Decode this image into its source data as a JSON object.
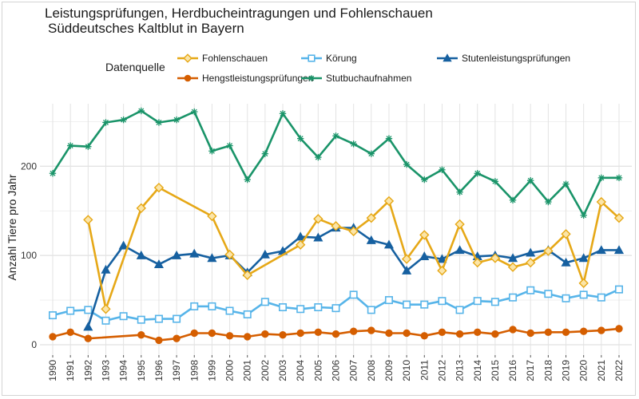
{
  "chart_data": {
    "type": "line",
    "title": "Leistungsprüfungen, Herdbucheintragungen und Fohlenschauen",
    "subtitle": "Süddeutsches Kaltblut in Bayern",
    "xlabel": "",
    "ylabel": "Anzahl Tiere pro Jahr",
    "legend_title": "Datenquelle",
    "legend_position": "top",
    "grid": true,
    "xlim": [
      1990,
      2022
    ],
    "ylim": [
      0,
      270
    ],
    "y_ticks": [
      0,
      100,
      200
    ],
    "x_ticks": [
      1990,
      1991,
      1992,
      1993,
      1994,
      1995,
      1996,
      1997,
      1998,
      1999,
      2000,
      2001,
      2002,
      2003,
      2004,
      2005,
      2006,
      2007,
      2008,
      2009,
      2010,
      2011,
      2012,
      2013,
      2014,
      2015,
      2016,
      2017,
      2018,
      2019,
      2020,
      2021,
      2022
    ],
    "series": [
      {
        "name": "Fohlenschauen",
        "color": "#E6A817",
        "marker": "diamond",
        "points": [
          [
            1992,
            140
          ],
          [
            1993,
            40
          ],
          [
            1995,
            153
          ],
          [
            1996,
            176
          ],
          [
            1999,
            144
          ],
          [
            2000,
            101
          ],
          [
            2001,
            78
          ],
          [
            2004,
            112
          ],
          [
            2005,
            141
          ],
          [
            2006,
            133
          ],
          [
            2007,
            127
          ],
          [
            2008,
            142
          ],
          [
            2009,
            161
          ],
          [
            2010,
            96
          ],
          [
            2011,
            123
          ],
          [
            2012,
            83
          ],
          [
            2013,
            135
          ],
          [
            2014,
            92
          ],
          [
            2015,
            97
          ],
          [
            2016,
            87
          ],
          [
            2017,
            92
          ],
          [
            2018,
            105
          ],
          [
            2019,
            124
          ],
          [
            2020,
            69
          ],
          [
            2021,
            160
          ],
          [
            2022,
            142
          ]
        ]
      },
      {
        "name": "Hengstleistungsprüfungen",
        "color": "#D55E00",
        "marker": "circle",
        "points": [
          [
            1990,
            9
          ],
          [
            1991,
            14
          ],
          [
            1992,
            7
          ],
          [
            1995,
            11
          ],
          [
            1996,
            5
          ],
          [
            1997,
            7
          ],
          [
            1998,
            13
          ],
          [
            1999,
            13
          ],
          [
            2000,
            10
          ],
          [
            2001,
            9
          ],
          [
            2002,
            12
          ],
          [
            2003,
            11
          ],
          [
            2004,
            13
          ],
          [
            2005,
            14
          ],
          [
            2006,
            12
          ],
          [
            2007,
            15
          ],
          [
            2008,
            16
          ],
          [
            2009,
            13
          ],
          [
            2010,
            13
          ],
          [
            2011,
            10
          ],
          [
            2012,
            14
          ],
          [
            2013,
            12
          ],
          [
            2014,
            14
          ],
          [
            2015,
            12
          ],
          [
            2016,
            17
          ],
          [
            2017,
            13
          ],
          [
            2018,
            14
          ],
          [
            2019,
            14
          ],
          [
            2020,
            15
          ],
          [
            2021,
            16
          ],
          [
            2022,
            18
          ]
        ]
      },
      {
        "name": "Körung",
        "color": "#56B4E9",
        "marker": "square",
        "points": [
          [
            1990,
            33
          ],
          [
            1991,
            38
          ],
          [
            1992,
            39
          ],
          [
            1993,
            27
          ],
          [
            1994,
            32
          ],
          [
            1995,
            28
          ],
          [
            1996,
            29
          ],
          [
            1997,
            29
          ],
          [
            1998,
            43
          ],
          [
            1999,
            43
          ],
          [
            2000,
            38
          ],
          [
            2001,
            34
          ],
          [
            2002,
            48
          ],
          [
            2003,
            42
          ],
          [
            2004,
            40
          ],
          [
            2005,
            42
          ],
          [
            2006,
            41
          ],
          [
            2007,
            56
          ],
          [
            2008,
            39
          ],
          [
            2009,
            50
          ],
          [
            2010,
            45
          ],
          [
            2011,
            45
          ],
          [
            2012,
            49
          ],
          [
            2013,
            39
          ],
          [
            2014,
            49
          ],
          [
            2015,
            48
          ],
          [
            2016,
            53
          ],
          [
            2017,
            61
          ],
          [
            2018,
            57
          ],
          [
            2019,
            52
          ],
          [
            2020,
            56
          ],
          [
            2021,
            53
          ],
          [
            2022,
            62
          ]
        ]
      },
      {
        "name": "Stutbuchaufnahmen",
        "color": "#1A9469",
        "marker": "asterisk",
        "points": [
          [
            1990,
            192
          ],
          [
            1991,
            223
          ],
          [
            1992,
            222
          ],
          [
            1993,
            249
          ],
          [
            1994,
            252
          ],
          [
            1995,
            262
          ],
          [
            1996,
            249
          ],
          [
            1997,
            252
          ],
          [
            1998,
            261
          ],
          [
            1999,
            217
          ],
          [
            2000,
            223
          ],
          [
            2001,
            185
          ],
          [
            2002,
            214
          ],
          [
            2003,
            259
          ],
          [
            2004,
            231
          ],
          [
            2005,
            210
          ],
          [
            2006,
            234
          ],
          [
            2007,
            225
          ],
          [
            2008,
            214
          ],
          [
            2009,
            231
          ],
          [
            2010,
            202
          ],
          [
            2011,
            185
          ],
          [
            2012,
            196
          ],
          [
            2013,
            171
          ],
          [
            2014,
            192
          ],
          [
            2015,
            183
          ],
          [
            2016,
            162
          ],
          [
            2017,
            184
          ],
          [
            2018,
            160
          ],
          [
            2019,
            180
          ],
          [
            2020,
            145
          ],
          [
            2021,
            187
          ],
          [
            2022,
            187
          ]
        ]
      },
      {
        "name": "Stutenleistungsprüfungen",
        "color": "#1660A0",
        "marker": "triangle",
        "points": [
          [
            1992,
            20
          ],
          [
            1993,
            84
          ],
          [
            1994,
            111
          ],
          [
            1995,
            100
          ],
          [
            1996,
            90
          ],
          [
            1997,
            100
          ],
          [
            1998,
            102
          ],
          [
            1999,
            97
          ],
          [
            2000,
            100
          ],
          [
            2001,
            81
          ],
          [
            2002,
            101
          ],
          [
            2003,
            105
          ],
          [
            2004,
            121
          ],
          [
            2005,
            120
          ],
          [
            2006,
            131
          ],
          [
            2007,
            131
          ],
          [
            2008,
            117
          ],
          [
            2009,
            112
          ],
          [
            2010,
            83
          ],
          [
            2011,
            99
          ],
          [
            2012,
            96
          ],
          [
            2013,
            106
          ],
          [
            2014,
            99
          ],
          [
            2015,
            100
          ],
          [
            2016,
            97
          ],
          [
            2017,
            103
          ],
          [
            2018,
            106
          ],
          [
            2019,
            92
          ],
          [
            2020,
            97
          ],
          [
            2021,
            106
          ],
          [
            2022,
            106
          ]
        ]
      }
    ]
  }
}
